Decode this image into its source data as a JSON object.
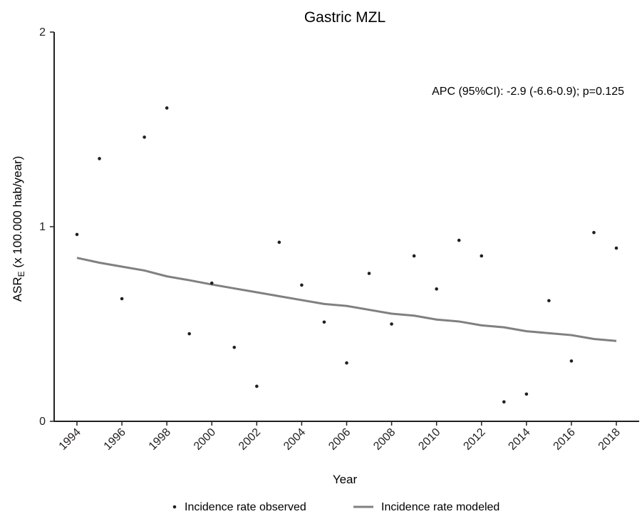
{
  "chart_data": {
    "type": "scatter",
    "title": "Gastric MZL",
    "xlabel": "Year",
    "ylabel": {
      "prefix": "ASR",
      "subscript": "E",
      "suffix": " (x 100.000 hab/year)"
    },
    "annotation": "APC (95%CI): -2.9 (-6.6-0.9); p=0.125",
    "xlim": [
      1994,
      2018
    ],
    "ylim": [
      0,
      2
    ],
    "x_ticks": [
      "1994",
      "1996",
      "1998",
      "2000",
      "2002",
      "2004",
      "2006",
      "2008",
      "2010",
      "2012",
      "2014",
      "2016",
      "2018"
    ],
    "y_ticks": [
      "0",
      "1",
      "2"
    ],
    "x": [
      1994,
      1995,
      1996,
      1997,
      1998,
      1999,
      2000,
      2001,
      2002,
      2003,
      2004,
      2005,
      2006,
      2007,
      2008,
      2009,
      2010,
      2011,
      2012,
      2013,
      2014,
      2015,
      2016,
      2017,
      2018
    ],
    "series": [
      {
        "name": "Incidence rate observed",
        "kind": "points",
        "color": "#231f20",
        "values": [
          0.96,
          1.35,
          0.63,
          1.46,
          1.61,
          0.45,
          0.71,
          0.38,
          0.18,
          0.92,
          0.7,
          0.51,
          0.3,
          0.76,
          0.5,
          0.85,
          0.68,
          0.93,
          0.85,
          0.1,
          0.14,
          0.62,
          0.31,
          0.97,
          0.89
        ]
      },
      {
        "name": "Incidence rate modeled",
        "kind": "line",
        "color": "#808080",
        "values": [
          0.84,
          0.815,
          0.795,
          0.775,
          0.745,
          0.725,
          0.703,
          0.683,
          0.663,
          0.643,
          0.623,
          0.603,
          0.593,
          0.573,
          0.553,
          0.543,
          0.523,
          0.513,
          0.493,
          0.483,
          0.463,
          0.453,
          0.443,
          0.423,
          0.413
        ]
      }
    ],
    "grid": false,
    "legend_position": "bottom"
  }
}
